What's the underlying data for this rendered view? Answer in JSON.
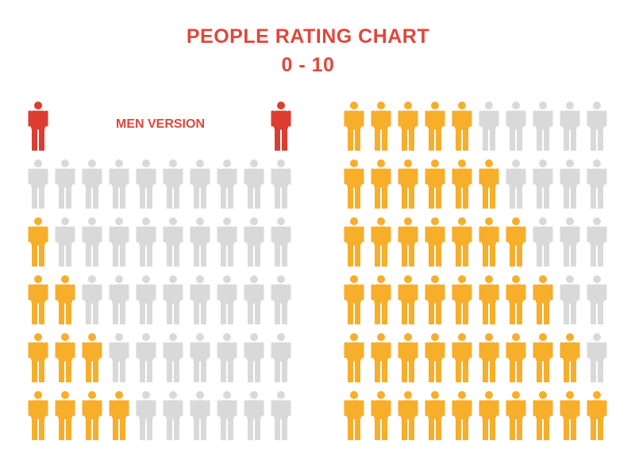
{
  "header": {
    "title_line1": "PEOPLE RATING CHART",
    "title_line2": "0 - 10"
  },
  "legend": {
    "label": "MEN VERSION",
    "icon": "man-icon"
  },
  "colors": {
    "title": "#e0473a",
    "legend_figure": "#dd3d30",
    "filled": "#f6ae2b",
    "empty": "#d9d9d9"
  },
  "ratings_per_row": 10,
  "ratings": [
    {
      "rating": 0
    },
    {
      "rating": 1
    },
    {
      "rating": 2
    },
    {
      "rating": 3
    },
    {
      "rating": 4
    },
    {
      "rating": 5
    },
    {
      "rating": 6
    },
    {
      "rating": 7
    },
    {
      "rating": 8
    },
    {
      "rating": 9
    },
    {
      "rating": 10
    }
  ]
}
